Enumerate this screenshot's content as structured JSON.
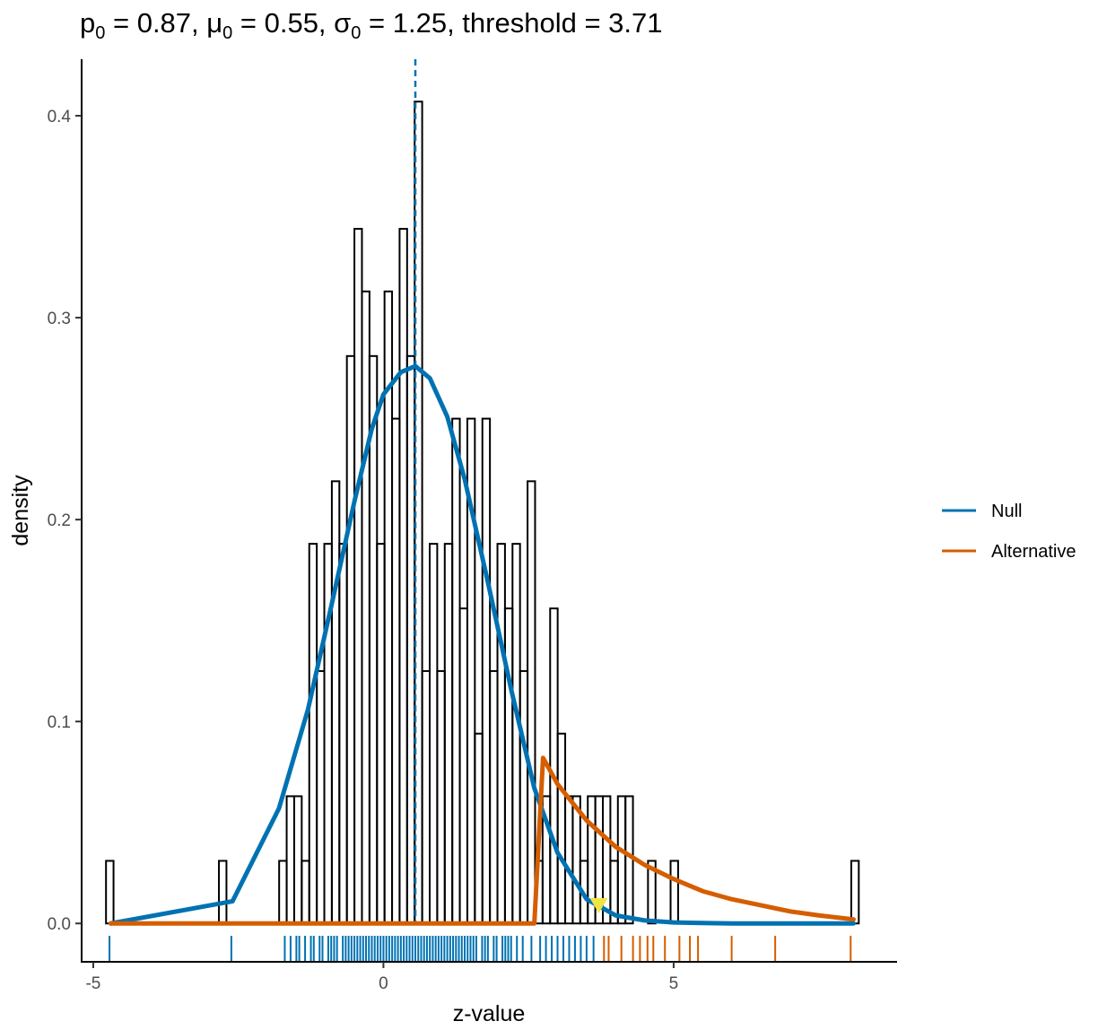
{
  "title_parts": {
    "p_sym": "p",
    "p_sub": "0",
    "p_val": " = 0.87, ",
    "mu_sym": "μ",
    "mu_sub": "0",
    "mu_val": " = 0.55, ",
    "sigma_sym": "σ",
    "sigma_sub": "0",
    "sigma_val": " = 1.25, threshold = 3.71"
  },
  "chart_data": {
    "type": "histogram",
    "xlabel": "z-value",
    "ylabel": "density",
    "xlim": [
      -5.2,
      8.85
    ],
    "ylim": [
      -0.019,
      0.428
    ],
    "x_ticks": [
      -5,
      0,
      5
    ],
    "x_tick_labels": [
      "-5",
      "0",
      "5"
    ],
    "y_ticks": [
      0.0,
      0.1,
      0.2,
      0.3,
      0.4
    ],
    "y_tick_labels": [
      "0.0",
      "0.1",
      "0.2",
      "0.3",
      "0.4"
    ],
    "grid": false,
    "histogram": {
      "bin_start": -4.78,
      "bin_width": 0.1297,
      "densities": [
        0.031,
        0,
        0,
        0,
        0,
        0,
        0,
        0,
        0,
        0,
        0,
        0,
        0,
        0,
        0,
        0.031,
        0,
        0,
        0,
        0,
        0,
        0,
        0,
        0.031,
        0.063,
        0.063,
        0.031,
        0.188,
        0.125,
        0.188,
        0.219,
        0.188,
        0.281,
        0.344,
        0.313,
        0.281,
        0.188,
        0.313,
        0.25,
        0.344,
        0.281,
        0.407,
        0.125,
        0.188,
        0.125,
        0.188,
        0.25,
        0.156,
        0.25,
        0.094,
        0.25,
        0.125,
        0.188,
        0.156,
        0.188,
        0.125,
        0.219,
        0.031,
        0.063,
        0.156,
        0.094,
        0.063,
        0.063,
        0.031,
        0.063,
        0.063,
        0.063,
        0.031,
        0.063,
        0.063,
        0,
        0,
        0.031,
        0,
        0,
        0.031,
        0,
        0,
        0,
        0,
        0,
        0,
        0,
        0,
        0,
        0,
        0,
        0,
        0,
        0,
        0,
        0,
        0,
        0,
        0,
        0,
        0,
        0,
        0,
        0.031
      ],
      "stroke": "#000000"
    },
    "mean_line": {
      "x": 0.55,
      "color": "#0072B2",
      "style": "dashed"
    },
    "series": [
      {
        "name": "Null",
        "color": "#0072B2",
        "x": [
          -4.7,
          -2.6,
          -1.8,
          -1.3,
          -0.9,
          -0.5,
          -0.2,
          0.0,
          0.3,
          0.55,
          0.8,
          1.1,
          1.4,
          1.8,
          2.2,
          2.6,
          3.0,
          3.5,
          4.0,
          4.5,
          5.0,
          5.5,
          6.0,
          7.0,
          8.1
        ],
        "values": [
          0.0,
          0.011,
          0.057,
          0.106,
          0.157,
          0.209,
          0.245,
          0.262,
          0.273,
          0.276,
          0.27,
          0.251,
          0.22,
          0.169,
          0.116,
          0.067,
          0.035,
          0.012,
          0.004,
          0.0015,
          0.0005,
          0.0002,
          0.0,
          0.0,
          0.0
        ]
      },
      {
        "name": "Alternative",
        "color": "#D55E00",
        "x": [
          -4.7,
          2.6,
          2.75,
          3.0,
          3.5,
          4.0,
          4.5,
          5.0,
          5.5,
          6.0,
          6.5,
          7.0,
          7.5,
          8.1
        ],
        "values": [
          0.0,
          0.0,
          0.082,
          0.069,
          0.051,
          0.038,
          0.029,
          0.022,
          0.016,
          0.012,
          0.009,
          0.006,
          0.004,
          0.002
        ]
      }
    ],
    "threshold_marker": {
      "x": 3.71,
      "y": 0.009,
      "color": "#F0E442",
      "shape": "down-triangle"
    },
    "rug": {
      "null_color": "#0072B2",
      "alt_color": "#D55E00",
      "null_x": [
        -4.72,
        -2.62,
        -1.7,
        -1.6,
        -1.5,
        -1.45,
        -1.35,
        -1.25,
        -1.2,
        -1.1,
        -1.05,
        -0.95,
        -0.9,
        -0.85,
        -0.8,
        -0.7,
        -0.65,
        -0.6,
        -0.55,
        -0.5,
        -0.45,
        -0.4,
        -0.35,
        -0.3,
        -0.25,
        -0.2,
        -0.15,
        -0.1,
        -0.05,
        0.0,
        0.05,
        0.1,
        0.15,
        0.2,
        0.25,
        0.3,
        0.35,
        0.4,
        0.45,
        0.5,
        0.55,
        0.6,
        0.65,
        0.7,
        0.75,
        0.8,
        0.85,
        0.9,
        0.95,
        1.0,
        1.05,
        1.1,
        1.15,
        1.2,
        1.25,
        1.3,
        1.35,
        1.4,
        1.45,
        1.5,
        1.55,
        1.6,
        1.7,
        1.75,
        1.8,
        1.9,
        1.95,
        2.05,
        2.1,
        2.15,
        2.2,
        2.3,
        2.4,
        2.55,
        2.7,
        2.8,
        2.9,
        3.0,
        3.1,
        3.2,
        3.3,
        3.4,
        3.5,
        3.62
      ],
      "alt_x": [
        3.8,
        3.88,
        4.1,
        4.3,
        4.42,
        4.55,
        4.65,
        4.85,
        5.1,
        5.28,
        5.42,
        6.0,
        6.75,
        8.05
      ]
    },
    "legend": {
      "placement": "right",
      "entries": [
        {
          "label": "Null",
          "color": "#0072B2"
        },
        {
          "label": "Alternative",
          "color": "#D55E00"
        }
      ]
    }
  }
}
